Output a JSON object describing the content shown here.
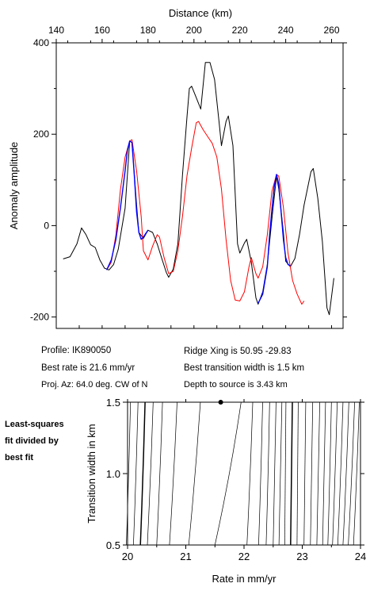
{
  "chart_data": [
    {
      "type": "line",
      "xlabel": "Distance (km)",
      "ylabel": "Anomaly amplitude",
      "xlim": [
        140,
        265
      ],
      "ylim": [
        -225,
        400
      ],
      "x_ticks": [
        140,
        160,
        180,
        200,
        220,
        240,
        260
      ],
      "y_ticks": [
        -200,
        0,
        200,
        400
      ],
      "grid": false,
      "series": [
        {
          "color": "#000000",
          "points": [
            [
              143,
              -73
            ],
            [
              146,
              -68
            ],
            [
              149,
              -40
            ],
            [
              151,
              -5
            ],
            [
              153,
              -20
            ],
            [
              155,
              -42
            ],
            [
              157,
              -48
            ],
            [
              159,
              -75
            ],
            [
              161,
              -93
            ],
            [
              163,
              -97
            ],
            [
              165,
              -85
            ],
            [
              167,
              -52
            ],
            [
              170,
              38
            ],
            [
              172,
              185
            ],
            [
              173,
              182
            ],
            [
              175,
              45
            ],
            [
              176,
              -15
            ],
            [
              178,
              -28
            ],
            [
              180,
              -10
            ],
            [
              182,
              -15
            ],
            [
              184,
              -40
            ],
            [
              186,
              -72
            ],
            [
              188,
              -103
            ],
            [
              189,
              -113
            ],
            [
              191,
              -95
            ],
            [
              193,
              -40
            ],
            [
              195,
              110
            ],
            [
              197,
              240
            ],
            [
              198,
              300
            ],
            [
              199,
              305
            ],
            [
              201,
              280
            ],
            [
              203,
              255
            ],
            [
              205,
              357
            ],
            [
              207,
              357
            ],
            [
              209,
              320
            ],
            [
              211,
              225
            ],
            [
              212,
              175
            ],
            [
              214,
              228
            ],
            [
              215,
              240
            ],
            [
              217,
              175
            ],
            [
              219,
              -40
            ],
            [
              220,
              -60
            ],
            [
              222,
              -38
            ],
            [
              223,
              -30
            ],
            [
              225,
              -80
            ],
            [
              227,
              -158
            ],
            [
              228,
              -172
            ],
            [
              230,
              -145
            ],
            [
              232,
              -85
            ],
            [
              234,
              15
            ],
            [
              236,
              108
            ],
            [
              237,
              80
            ],
            [
              239,
              -15
            ],
            [
              240,
              -78
            ],
            [
              242,
              -90
            ],
            [
              244,
              -72
            ],
            [
              246,
              -20
            ],
            [
              248,
              45
            ],
            [
              251,
              118
            ],
            [
              252,
              125
            ],
            [
              254,
              60
            ],
            [
              256,
              -35
            ],
            [
              258,
              -180
            ],
            [
              259,
              -195
            ],
            [
              261,
              -115
            ]
          ]
        },
        {
          "color": "#ff0000",
          "points": [
            [
              162,
              -97
            ],
            [
              164,
              -80
            ],
            [
              166,
              -20
            ],
            [
              168,
              80
            ],
            [
              170,
              150
            ],
            [
              172,
              185
            ],
            [
              173,
              188
            ],
            [
              175,
              120
            ],
            [
              177,
              20
            ],
            [
              178,
              -55
            ],
            [
              180,
              -75
            ],
            [
              182,
              -45
            ],
            [
              184,
              -20
            ],
            [
              185,
              -25
            ],
            [
              187,
              -70
            ],
            [
              189,
              -105
            ],
            [
              191,
              -100
            ],
            [
              193,
              -55
            ],
            [
              195,
              20
            ],
            [
              197,
              110
            ],
            [
              199,
              170
            ],
            [
              201,
              225
            ],
            [
              202,
              228
            ],
            [
              204,
              210
            ],
            [
              206,
              195
            ],
            [
              208,
              180
            ],
            [
              210,
              150
            ],
            [
              212,
              80
            ],
            [
              214,
              -30
            ],
            [
              216,
              -120
            ],
            [
              218,
              -163
            ],
            [
              220,
              -165
            ],
            [
              222,
              -145
            ],
            [
              224,
              -90
            ],
            [
              225,
              -70
            ],
            [
              227,
              -105
            ],
            [
              228,
              -115
            ],
            [
              230,
              -90
            ],
            [
              232,
              -20
            ],
            [
              234,
              75
            ],
            [
              236,
              112
            ],
            [
              237,
              108
            ],
            [
              239,
              40
            ],
            [
              241,
              -60
            ],
            [
              243,
              -120
            ],
            [
              245,
              -150
            ],
            [
              247,
              -172
            ],
            [
              248,
              -165
            ]
          ]
        },
        {
          "color": "#0000ff",
          "points": [
            [
              162,
              -97
            ],
            [
              164,
              -75
            ],
            [
              166,
              -30
            ],
            [
              168,
              40
            ],
            [
              170,
              120
            ],
            [
              171,
              165
            ],
            [
              172,
              185
            ],
            [
              173,
              182
            ],
            [
              174,
              110
            ],
            [
              175,
              30
            ],
            [
              176,
              -15
            ],
            [
              177,
              -30
            ],
            [
              178,
              -25
            ],
            [
              180,
              -10
            ]
          ]
        },
        {
          "color": "#0000ff",
          "points": [
            [
              228,
              -170
            ],
            [
              230,
              -150
            ],
            [
              232,
              -90
            ],
            [
              233,
              -20
            ],
            [
              234,
              35
            ],
            [
              235,
              85
            ],
            [
              236,
              112
            ],
            [
              237,
              90
            ],
            [
              238,
              30
            ],
            [
              239,
              -30
            ],
            [
              240,
              -70
            ],
            [
              241,
              -85
            ],
            [
              242,
              -88
            ]
          ]
        }
      ]
    },
    {
      "type": "contour",
      "xlabel": "Rate in mm/yr",
      "ylabel": "Transition width in km",
      "xlim": [
        20,
        24
      ],
      "ylim": [
        0.5,
        1.5
      ],
      "x_ticks": [
        20,
        21,
        22,
        23,
        24
      ],
      "y_ticks": [
        0.5,
        1.0,
        1.5
      ],
      "best_fit": {
        "rate": 21.6,
        "width": 1.5
      },
      "contour_lines": [
        {
          "top": 20.05,
          "bottom": 19.98,
          "bold": false
        },
        {
          "top": 20.18,
          "bottom": 20.1,
          "bold": false
        },
        {
          "top": 20.3,
          "bottom": 20.22,
          "bold": true
        },
        {
          "top": 20.44,
          "bottom": 20.34,
          "bold": false
        },
        {
          "top": 20.6,
          "bottom": 20.5,
          "bold": false
        },
        {
          "top": 20.85,
          "bottom": 20.72,
          "bold": false
        },
        {
          "top": 21.25,
          "bottom": 21.05,
          "bold": false
        },
        {
          "top": 21.95,
          "bottom": 21.5,
          "bold": false
        },
        {
          "top": 22.15,
          "bottom": 22.05,
          "bold": false
        },
        {
          "top": 22.32,
          "bottom": 22.25,
          "bold": false
        },
        {
          "top": 22.44,
          "bottom": 22.38,
          "bold": false
        },
        {
          "top": 22.55,
          "bottom": 22.5,
          "bold": false
        },
        {
          "top": 22.65,
          "bottom": 22.6,
          "bold": false
        },
        {
          "top": 22.72,
          "bottom": 22.7,
          "bold": false
        },
        {
          "top": 22.83,
          "bottom": 22.8,
          "bold": true
        },
        {
          "top": 22.93,
          "bottom": 22.91,
          "bold": false
        },
        {
          "top": 23.06,
          "bottom": 23.03,
          "bold": false
        },
        {
          "top": 23.18,
          "bottom": 23.14,
          "bold": false
        },
        {
          "top": 23.3,
          "bottom": 23.25,
          "bold": false
        },
        {
          "top": 23.4,
          "bottom": 23.35,
          "bold": false
        },
        {
          "top": 23.5,
          "bottom": 23.44,
          "bold": false
        },
        {
          "top": 23.6,
          "bottom": 23.52,
          "bold": false
        },
        {
          "top": 23.7,
          "bottom": 23.61,
          "bold": false
        },
        {
          "top": 23.8,
          "bottom": 23.7,
          "bold": false
        },
        {
          "top": 23.9,
          "bottom": 23.79,
          "bold": false
        },
        {
          "top": 23.98,
          "bottom": 23.88,
          "bold": false
        }
      ]
    }
  ],
  "info": {
    "profile": "Profile: IK890050",
    "best_rate": "Best rate is 21.6 mm/yr",
    "proj_az": "Proj. Az: 64.0 deg. CW of N",
    "ridge_xing": "Ridge Xing is 50.95 -29.83",
    "best_width": "Best transition width is 1.5 km",
    "depth": "Depth to source is   3.43 km"
  },
  "side_label": [
    "Least-squares",
    "fit divided by",
    "best fit"
  ]
}
